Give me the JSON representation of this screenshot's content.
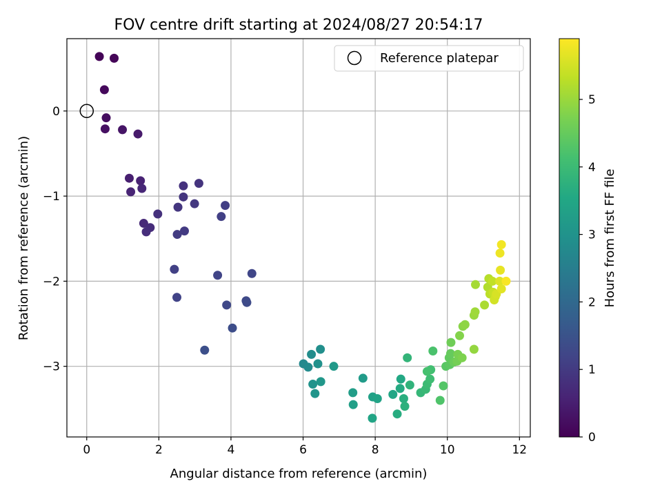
{
  "chart_data": {
    "type": "scatter",
    "title": "FOV centre drift starting at 2024/08/27 20:54:17",
    "xlabel": "Angular distance from reference (arcmin)",
    "ylabel": "Rotation from reference (arcmin)",
    "xlim": [
      -0.55,
      12.3
    ],
    "ylim": [
      -3.83,
      0.85
    ],
    "x_ticks": [
      0,
      2,
      4,
      6,
      8,
      10,
      12
    ],
    "y_ticks": [
      -3,
      -2,
      -1,
      0
    ],
    "grid": true,
    "legend": {
      "position": "top-right",
      "entries": [
        "Reference platepar"
      ]
    },
    "reference_point": {
      "x": 0,
      "y": 0
    },
    "colorbar": {
      "label": "Hours from first FF file",
      "colormap": "viridis",
      "range": [
        0,
        5.9
      ],
      "ticks": [
        0,
        1,
        2,
        3,
        4,
        5
      ]
    },
    "points": [
      {
        "x": 0.35,
        "y": 0.64,
        "c": 0.05
      },
      {
        "x": 0.76,
        "y": 0.62,
        "c": 0.08
      },
      {
        "x": 0.49,
        "y": 0.25,
        "c": 0.12
      },
      {
        "x": 0.54,
        "y": -0.08,
        "c": 0.2
      },
      {
        "x": 0.51,
        "y": -0.21,
        "c": 0.25
      },
      {
        "x": 0.99,
        "y": -0.22,
        "c": 0.33
      },
      {
        "x": 1.42,
        "y": -0.27,
        "c": 0.42
      },
      {
        "x": 1.18,
        "y": -0.79,
        "c": 0.5
      },
      {
        "x": 1.49,
        "y": -0.82,
        "c": 0.57
      },
      {
        "x": 1.22,
        "y": -0.95,
        "c": 0.6
      },
      {
        "x": 1.53,
        "y": -0.91,
        "c": 0.64
      },
      {
        "x": 1.58,
        "y": -1.32,
        "c": 0.7
      },
      {
        "x": 1.76,
        "y": -1.37,
        "c": 0.74
      },
      {
        "x": 1.65,
        "y": -1.42,
        "c": 0.78
      },
      {
        "x": 1.97,
        "y": -1.21,
        "c": 0.82
      },
      {
        "x": 2.68,
        "y": -0.88,
        "c": 0.85
      },
      {
        "x": 3.11,
        "y": -0.85,
        "c": 0.88
      },
      {
        "x": 2.68,
        "y": -1.01,
        "c": 0.9
      },
      {
        "x": 2.53,
        "y": -1.13,
        "c": 0.93
      },
      {
        "x": 2.99,
        "y": -1.09,
        "c": 0.96
      },
      {
        "x": 2.71,
        "y": -1.41,
        "c": 1.0
      },
      {
        "x": 2.51,
        "y": -1.45,
        "c": 1.03
      },
      {
        "x": 3.84,
        "y": -1.11,
        "c": 1.07
      },
      {
        "x": 3.73,
        "y": -1.24,
        "c": 1.1
      },
      {
        "x": 2.43,
        "y": -1.86,
        "c": 1.13
      },
      {
        "x": 2.5,
        "y": -2.19,
        "c": 1.17
      },
      {
        "x": 3.63,
        "y": -1.93,
        "c": 1.2
      },
      {
        "x": 4.58,
        "y": -1.91,
        "c": 1.23
      },
      {
        "x": 3.88,
        "y": -2.28,
        "c": 1.27
      },
      {
        "x": 4.42,
        "y": -2.23,
        "c": 1.3
      },
      {
        "x": 4.44,
        "y": -2.25,
        "c": 1.33
      },
      {
        "x": 4.04,
        "y": -2.55,
        "c": 1.37
      },
      {
        "x": 3.27,
        "y": -2.81,
        "c": 1.43
      },
      {
        "x": 6.01,
        "y": -2.97,
        "c": 2.75
      },
      {
        "x": 6.14,
        "y": -3.01,
        "c": 2.8
      },
      {
        "x": 6.23,
        "y": -2.86,
        "c": 2.85
      },
      {
        "x": 6.48,
        "y": -2.8,
        "c": 2.9
      },
      {
        "x": 6.41,
        "y": -2.97,
        "c": 2.95
      },
      {
        "x": 6.27,
        "y": -3.21,
        "c": 3.0
      },
      {
        "x": 6.33,
        "y": -3.32,
        "c": 3.05
      },
      {
        "x": 6.49,
        "y": -3.18,
        "c": 3.1
      },
      {
        "x": 6.85,
        "y": -3.0,
        "c": 3.15
      },
      {
        "x": 7.66,
        "y": -3.14,
        "c": 3.2
      },
      {
        "x": 7.38,
        "y": -3.31,
        "c": 3.25
      },
      {
        "x": 7.39,
        "y": -3.45,
        "c": 3.3
      },
      {
        "x": 7.93,
        "y": -3.36,
        "c": 3.35
      },
      {
        "x": 8.06,
        "y": -3.38,
        "c": 3.4
      },
      {
        "x": 7.92,
        "y": -3.61,
        "c": 3.45
      },
      {
        "x": 8.49,
        "y": -3.33,
        "c": 3.5
      },
      {
        "x": 8.71,
        "y": -3.15,
        "c": 3.55
      },
      {
        "x": 8.69,
        "y": -3.26,
        "c": 3.6
      },
      {
        "x": 8.61,
        "y": -3.56,
        "c": 3.65
      },
      {
        "x": 8.79,
        "y": -3.38,
        "c": 3.7
      },
      {
        "x": 8.82,
        "y": -3.47,
        "c": 3.75
      },
      {
        "x": 8.96,
        "y": -3.22,
        "c": 3.8
      },
      {
        "x": 8.89,
        "y": -2.9,
        "c": 3.85
      },
      {
        "x": 9.26,
        "y": -3.31,
        "c": 3.9
      },
      {
        "x": 9.4,
        "y": -3.27,
        "c": 3.95
      },
      {
        "x": 9.44,
        "y": -3.21,
        "c": 4.0
      },
      {
        "x": 9.52,
        "y": -3.15,
        "c": 4.05
      },
      {
        "x": 9.54,
        "y": -3.04,
        "c": 4.1
      },
      {
        "x": 9.44,
        "y": -3.06,
        "c": 4.15
      },
      {
        "x": 9.6,
        "y": -2.82,
        "c": 4.2
      },
      {
        "x": 9.8,
        "y": -3.4,
        "c": 4.25
      },
      {
        "x": 9.89,
        "y": -3.23,
        "c": 4.3
      },
      {
        "x": 9.96,
        "y": -3.0,
        "c": 4.35
      },
      {
        "x": 10.07,
        "y": -2.98,
        "c": 4.4
      },
      {
        "x": 10.05,
        "y": -2.9,
        "c": 4.45
      },
      {
        "x": 10.09,
        "y": -2.85,
        "c": 4.5
      },
      {
        "x": 10.18,
        "y": -2.95,
        "c": 4.55
      },
      {
        "x": 10.1,
        "y": -2.72,
        "c": 4.6
      },
      {
        "x": 10.27,
        "y": -2.94,
        "c": 4.65
      },
      {
        "x": 10.29,
        "y": -2.86,
        "c": 4.7
      },
      {
        "x": 10.41,
        "y": -2.9,
        "c": 4.75
      },
      {
        "x": 10.34,
        "y": -2.64,
        "c": 4.8
      },
      {
        "x": 10.43,
        "y": -2.53,
        "c": 4.85
      },
      {
        "x": 10.49,
        "y": -2.51,
        "c": 4.9
      },
      {
        "x": 10.74,
        "y": -2.8,
        "c": 4.95
      },
      {
        "x": 10.74,
        "y": -2.4,
        "c": 5.0
      },
      {
        "x": 10.77,
        "y": -2.36,
        "c": 5.05
      },
      {
        "x": 10.78,
        "y": -2.04,
        "c": 5.1
      },
      {
        "x": 11.03,
        "y": -2.28,
        "c": 5.15
      },
      {
        "x": 11.12,
        "y": -2.07,
        "c": 5.2
      },
      {
        "x": 11.15,
        "y": -1.97,
        "c": 5.25
      },
      {
        "x": 11.18,
        "y": -2.15,
        "c": 5.3
      },
      {
        "x": 11.25,
        "y": -2.0,
        "c": 5.35
      },
      {
        "x": 11.27,
        "y": -2.13,
        "c": 5.4
      },
      {
        "x": 11.33,
        "y": -2.18,
        "c": 5.45
      },
      {
        "x": 11.3,
        "y": -2.22,
        "c": 5.5
      },
      {
        "x": 11.36,
        "y": -2.15,
        "c": 5.55
      },
      {
        "x": 11.45,
        "y": -2.0,
        "c": 5.6
      },
      {
        "x": 11.5,
        "y": -2.09,
        "c": 5.65
      },
      {
        "x": 11.47,
        "y": -1.87,
        "c": 5.7
      },
      {
        "x": 11.46,
        "y": -1.67,
        "c": 5.75
      },
      {
        "x": 11.5,
        "y": -1.57,
        "c": 5.8
      },
      {
        "x": 11.63,
        "y": -2.0,
        "c": 5.85
      }
    ]
  }
}
